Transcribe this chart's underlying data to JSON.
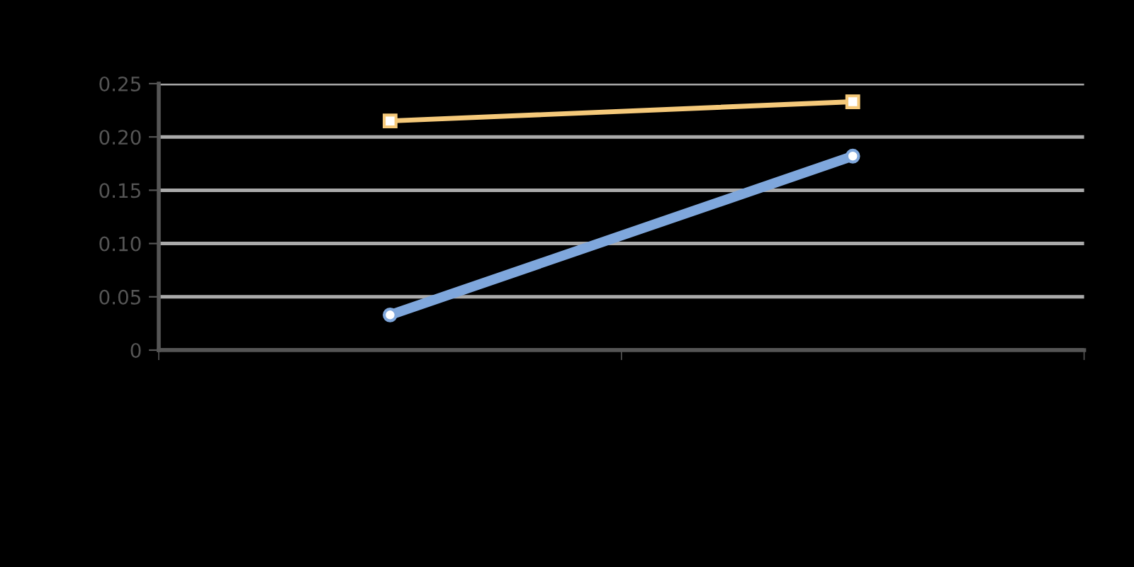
{
  "chart_data": {
    "type": "line",
    "categories": [
      null,
      null
    ],
    "series": [
      {
        "color": "#7fa7dc",
        "values": [
          0.033,
          0.182
        ],
        "marker": "circle"
      },
      {
        "color": "#f5c97a",
        "values": [
          0.215,
          0.233
        ],
        "marker": "square"
      }
    ],
    "ylim": [
      0,
      0.25
    ],
    "yticks": [
      0,
      0.05,
      {
        "value": 0.1,
        "label": "0.10"
      },
      0.15,
      {
        "value": 0.2,
        "label": "0.20"
      },
      0.25
    ],
    "grid": "y",
    "line_style": "solid"
  }
}
